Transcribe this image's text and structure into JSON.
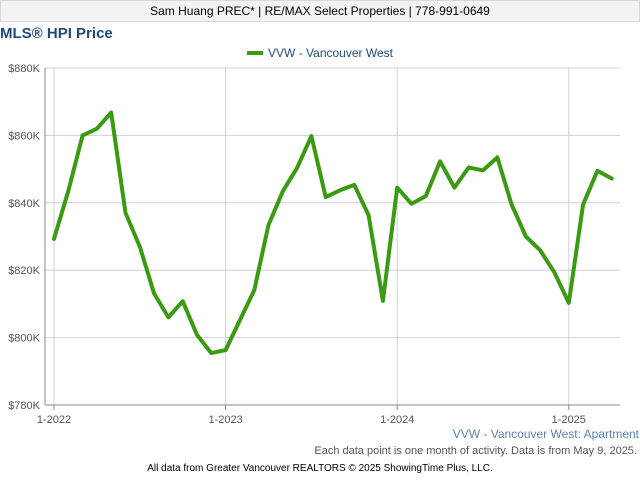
{
  "header": {
    "text": "Sam Huang PREC* | RE/MAX Select Properties | 778-991-0649"
  },
  "title": "MLS® HPI Price",
  "series_label": "VVW - Vancouver West: Apartment",
  "note": "Each data point is one month of activity. Data is from May 9, 2025.",
  "footer": "All data from Greater Vancouver REALTORS © 2025 ShowingTime Plus, LLC.",
  "colors": {
    "line": "#3a9a12",
    "title": "#1f4a7a",
    "grid": "#d0d0d0"
  },
  "chart_data": {
    "type": "line",
    "title": "MLS® HPI Price",
    "legend": [
      "VVW - Vancouver West"
    ],
    "legend_position": "top-center",
    "grid": true,
    "ylim": [
      780000,
      880000
    ],
    "y_ticks": [
      780000,
      800000,
      820000,
      840000,
      860000,
      880000
    ],
    "y_tick_labels": [
      "$780K",
      "$800K",
      "$820K",
      "$840K",
      "$860K",
      "$880K"
    ],
    "x_tick_labels": [
      "1-2022",
      "1-2023",
      "1-2024",
      "1-2025"
    ],
    "x_tick_months": [
      "2022-01",
      "2023-01",
      "2024-01",
      "2025-01"
    ],
    "series": [
      {
        "name": "VVW - Vancouver West",
        "x": [
          "2022-01",
          "2022-02",
          "2022-03",
          "2022-04",
          "2022-05",
          "2022-06",
          "2022-07",
          "2022-08",
          "2022-09",
          "2022-10",
          "2022-11",
          "2022-12",
          "2023-01",
          "2023-02",
          "2023-03",
          "2023-04",
          "2023-05",
          "2023-06",
          "2023-07",
          "2023-08",
          "2023-09",
          "2023-10",
          "2023-11",
          "2023-12",
          "2024-01",
          "2024-02",
          "2024-03",
          "2024-04",
          "2024-05",
          "2024-06",
          "2024-07",
          "2024-08",
          "2024-09",
          "2024-10",
          "2024-11",
          "2024-12",
          "2025-01",
          "2025-02",
          "2025-03",
          "2025-04"
        ],
        "values": [
          829300,
          843500,
          860000,
          862000,
          866800,
          837000,
          827000,
          813100,
          806000,
          810800,
          800800,
          795400,
          796300,
          805200,
          814000,
          833400,
          843400,
          850400,
          859800,
          841700,
          843700,
          845300,
          836300,
          810900,
          844500,
          839700,
          842000,
          852300,
          844500,
          850500,
          849600,
          853500,
          839500,
          830000,
          825900,
          819300,
          810300,
          839500,
          849500,
          847200
        ]
      }
    ]
  }
}
